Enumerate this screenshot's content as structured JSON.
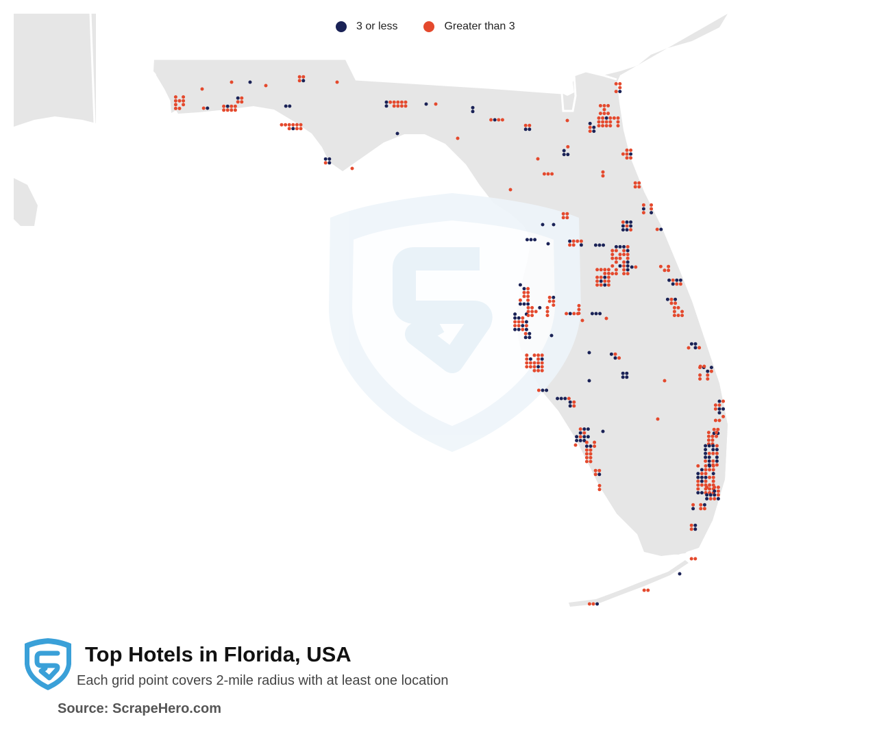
{
  "legend": {
    "items": [
      {
        "label": "3 or less",
        "color": "#1a2256"
      },
      {
        "label": "Greater than 3",
        "color": "#e4492d"
      }
    ]
  },
  "footer": {
    "title": "Top Hotels in Florida, USA",
    "subtitle": "Each grid point covers 2-mile radius with at least one location",
    "source": "Source: ScrapeHero.com"
  },
  "colors": {
    "land": "#e6e6e6",
    "water": "#ffffff",
    "low": "#1a2256",
    "high": "#e4492d",
    "brand": "#3aa0d8",
    "watermark": "#eef5fa"
  },
  "icons": [
    "scrapehero-shield-icon",
    "watermark-shield-icon"
  ]
}
